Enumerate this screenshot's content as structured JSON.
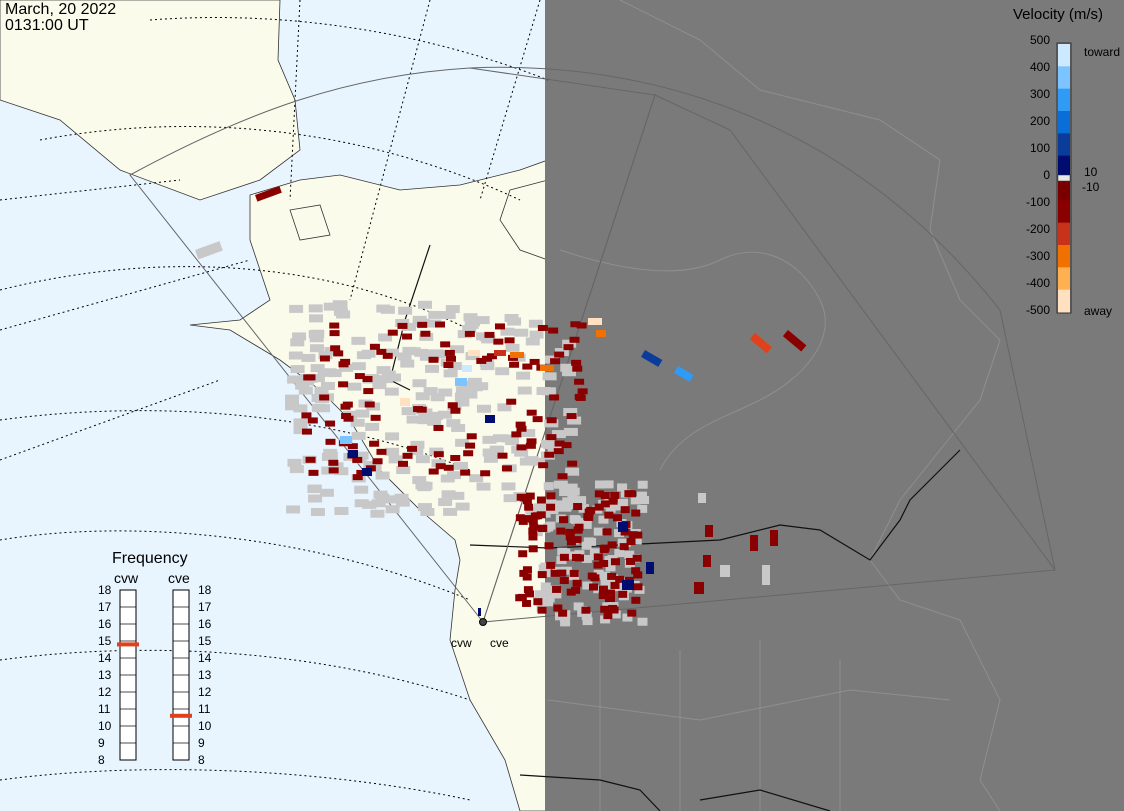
{
  "header": {
    "date": "March, 20 2022",
    "time": "0131:00 UT"
  },
  "legend": {
    "title": "Velocity (m/s)",
    "ticks": [
      "500",
      "400",
      "300",
      "200",
      "100",
      "0",
      "-100",
      "-200",
      "-300",
      "-400",
      "-500"
    ],
    "toward_label": "toward",
    "away_label": "away",
    "pos_threshold": "10",
    "neg_threshold": "-10",
    "colors": [
      "#cce9ff",
      "#7cc4ff",
      "#2f9bf5",
      "#0a6ed8",
      "#0a3c9c",
      "#000c70",
      "#7a0000",
      "#8a0000",
      "#c8321a",
      "#f07000",
      "#ffb050",
      "#ffe0c0"
    ]
  },
  "frequency": {
    "title": "Frequency",
    "radars": [
      {
        "name": "cvw",
        "value_mhz": 14.8
      },
      {
        "name": "cve",
        "value_mhz": 10.6
      }
    ],
    "ticks": [
      "18",
      "17",
      "16",
      "15",
      "14",
      "13",
      "12",
      "11",
      "10",
      "9",
      "8"
    ]
  },
  "radar_sites": [
    {
      "label": "cvw"
    },
    {
      "label": "cve"
    }
  ],
  "map": {
    "night_color": "#7a7a7a",
    "ocean_color": "#e8f5ff",
    "land_color": "#fbfbec",
    "scatter_color": "#c8c8c8"
  }
}
